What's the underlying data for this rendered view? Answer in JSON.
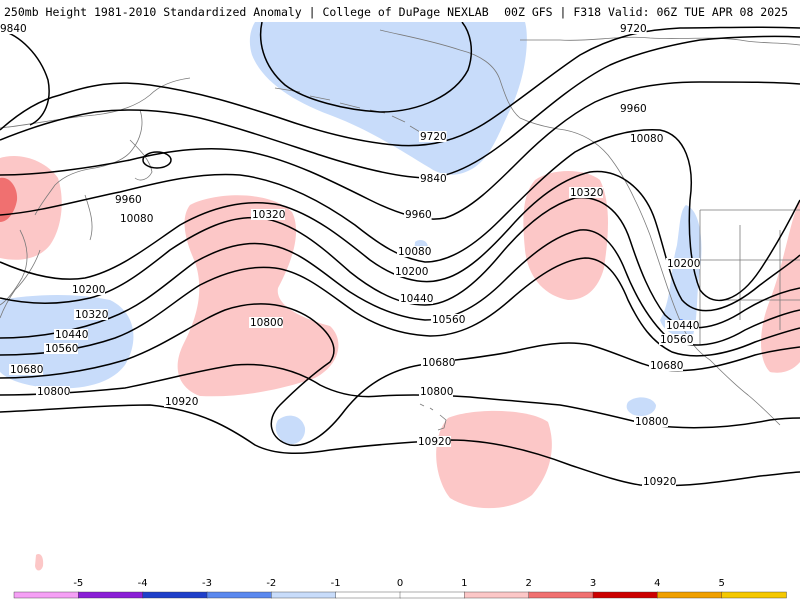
{
  "header": {
    "left": "250mb Height 1981-2010 Standardized Anomaly | College of DuPage NEXLAB",
    "right": "00Z GFS | F318 Valid: 06Z TUE APR 08 2025"
  },
  "colors": {
    "neg5": "#f5a0f5",
    "neg4": "#8a1fd6",
    "neg3": "#1f3fc9",
    "neg2": "#5a88ee",
    "neg1": "#c8dcfa",
    "zero": "#ffffff",
    "pos1": "#fcc7c7",
    "pos2": "#f07070",
    "pos3": "#cc0000",
    "pos4": "#f0a000",
    "pos5": "#f5c800",
    "contour": "#000000",
    "coast": "#7a7a7a"
  },
  "contour_labels": [
    {
      "id": "c9840-nw",
      "text": "9840"
    },
    {
      "id": "c9720-ne",
      "text": "9720"
    },
    {
      "id": "c9720-mid",
      "text": "9720"
    },
    {
      "id": "c9840-mid",
      "text": "9840"
    },
    {
      "id": "c9960-ne",
      "text": "9960"
    },
    {
      "id": "c10080-ne",
      "text": "10080"
    },
    {
      "id": "c9960-w",
      "text": "9960"
    },
    {
      "id": "c10080-w",
      "text": "10080"
    },
    {
      "id": "c10320-a",
      "text": "10320"
    },
    {
      "id": "c9960-mid",
      "text": "9960"
    },
    {
      "id": "c10320-b",
      "text": "10320"
    },
    {
      "id": "c10080-mid",
      "text": "10080"
    },
    {
      "id": "c10200-mid",
      "text": "10200"
    },
    {
      "id": "c10200-e",
      "text": "10200"
    },
    {
      "id": "c10200-w",
      "text": "10200"
    },
    {
      "id": "c10440-mid",
      "text": "10440"
    },
    {
      "id": "c10320-w",
      "text": "10320"
    },
    {
      "id": "c10560-mid",
      "text": "10560"
    },
    {
      "id": "c10440-e",
      "text": "10440"
    },
    {
      "id": "c10440-w",
      "text": "10440"
    },
    {
      "id": "c10560-e",
      "text": "10560"
    },
    {
      "id": "c10560-w",
      "text": "10560"
    },
    {
      "id": "c10800-c",
      "text": "10800"
    },
    {
      "id": "c10680-mid",
      "text": "10680"
    },
    {
      "id": "c10680-e",
      "text": "10680"
    },
    {
      "id": "c10680-w",
      "text": "10680"
    },
    {
      "id": "c10800-mid",
      "text": "10800"
    },
    {
      "id": "c10800-w",
      "text": "10800"
    },
    {
      "id": "c10920-w",
      "text": "10920"
    },
    {
      "id": "c10800-e",
      "text": "10800"
    },
    {
      "id": "c10920-mid",
      "text": "10920"
    },
    {
      "id": "c10920-e",
      "text": "10920"
    }
  ],
  "scale": {
    "labels": [
      "-5",
      "-4",
      "-3",
      "-2",
      "-1",
      "0",
      "1",
      "2",
      "3",
      "4",
      "5"
    ]
  }
}
